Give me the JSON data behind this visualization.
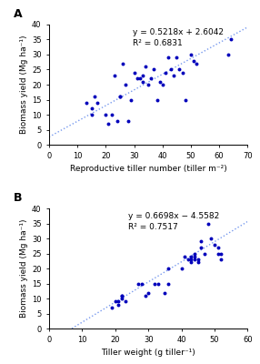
{
  "panel_A": {
    "label": "A",
    "scatter_x": [
      13,
      15,
      15,
      16,
      17,
      20,
      21,
      22,
      23,
      24,
      25,
      25,
      26,
      27,
      28,
      29,
      30,
      31,
      32,
      33,
      33,
      34,
      35,
      36,
      37,
      38,
      39,
      40,
      41,
      42,
      43,
      44,
      45,
      46,
      47,
      48,
      50,
      51,
      52,
      63,
      64
    ],
    "scatter_y": [
      14,
      12,
      10,
      16,
      14,
      10,
      7,
      10,
      23,
      8,
      16,
      16,
      27,
      20,
      8,
      15,
      24,
      22,
      22,
      23,
      21,
      26,
      20,
      22,
      25,
      15,
      21,
      20,
      24,
      29,
      25,
      23,
      29,
      25,
      24,
      15,
      30,
      28,
      27,
      30,
      35
    ],
    "slope": 0.5218,
    "intercept": 2.6042,
    "equation": "y = 0.5218x + 2.6042",
    "r2_text": "R² = 0.6831",
    "xlabel": "Reproductive tiller number (tiller m⁻²)",
    "ylabel": "Biomass yield (Mg ha⁻¹)",
    "xlim": [
      0,
      70
    ],
    "ylim": [
      0,
      40
    ],
    "xticks": [
      0,
      10,
      20,
      30,
      40,
      50,
      60,
      70
    ],
    "yticks": [
      0,
      5,
      10,
      15,
      20,
      25,
      30,
      35,
      40
    ],
    "eq_x": 0.42,
    "eq_y": 0.97
  },
  "panel_B": {
    "label": "B",
    "scatter_x": [
      19,
      20,
      21,
      21,
      22,
      22,
      22,
      23,
      27,
      28,
      29,
      30,
      32,
      33,
      35,
      36,
      36,
      40,
      41,
      42,
      43,
      43,
      43,
      44,
      44,
      44,
      45,
      45,
      46,
      46,
      47,
      48,
      49,
      50,
      51,
      51,
      52,
      52
    ],
    "scatter_y": [
      7,
      9,
      8,
      9,
      11,
      11,
      10,
      9,
      15,
      15,
      11,
      12,
      15,
      15,
      12,
      15,
      20,
      20,
      24,
      23,
      22,
      23,
      24,
      23,
      24,
      25,
      22,
      23,
      27,
      29,
      25,
      35,
      30,
      28,
      27,
      25,
      23,
      25
    ],
    "slope": 0.6698,
    "intercept": -4.5582,
    "equation": "y = 0.6698x − 4.5582",
    "r2_text": "R² = 0.7517",
    "xlabel": "Tiller weight (g tiller⁻¹)",
    "ylabel": "Biomass yield (Mg ha⁻¹)",
    "xlim": [
      0,
      60
    ],
    "ylim": [
      0,
      40
    ],
    "xticks": [
      0,
      10,
      20,
      30,
      40,
      50,
      60
    ],
    "yticks": [
      0,
      5,
      10,
      15,
      20,
      25,
      30,
      35,
      40
    ],
    "eq_x": 0.4,
    "eq_y": 0.97
  },
  "dot_color": "#0000BB",
  "line_color": "#7799EE",
  "dot_size": 8,
  "background_color": "#ffffff"
}
